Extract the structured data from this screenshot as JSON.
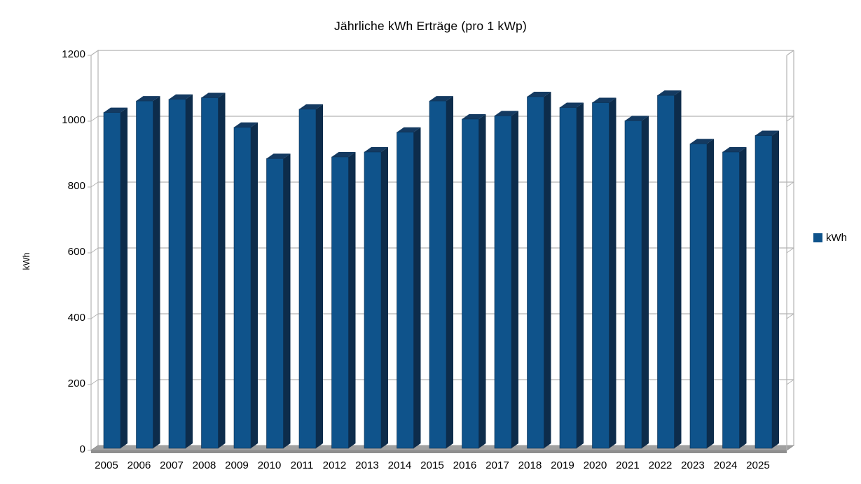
{
  "page": {
    "background": "#ffffff"
  },
  "chart_data": {
    "type": "bar",
    "style": "3d-box-parallel-projection",
    "title": "Jährliche kWh Erträge (pro 1 kWp)",
    "xlabel": "",
    "ylabel": "kWh",
    "legend": "kWh",
    "legend_position": "right",
    "categories": [
      "2005",
      "2006",
      "2007",
      "2008",
      "2009",
      "2010",
      "2011",
      "2012",
      "2013",
      "2014",
      "2015",
      "2016",
      "2017",
      "2018",
      "2019",
      "2020",
      "2021",
      "2022",
      "2023",
      "2024",
      "2025"
    ],
    "series": [
      {
        "name": "kWh",
        "values": [
          1020,
          1055,
          1060,
          1065,
          975,
          880,
          1030,
          885,
          900,
          960,
          1055,
          1000,
          1010,
          1068,
          1035,
          1050,
          995,
          1072,
          925,
          900,
          950
        ]
      }
    ],
    "ylim": [
      0,
      1200
    ],
    "yticks": [
      0,
      200,
      400,
      600,
      800,
      1000,
      1200
    ],
    "grid": true,
    "colors": {
      "bar_front": "#0F538B",
      "bar_side": "#0D2C4B",
      "bar_top": "#143A61",
      "bar_outline": "#0B2E50",
      "wall_line": "#B3B3B3",
      "floor": "#A0A0A0",
      "floor_side": "#8F8F8F",
      "text": "#000000",
      "background": "#FFFFFF"
    }
  }
}
